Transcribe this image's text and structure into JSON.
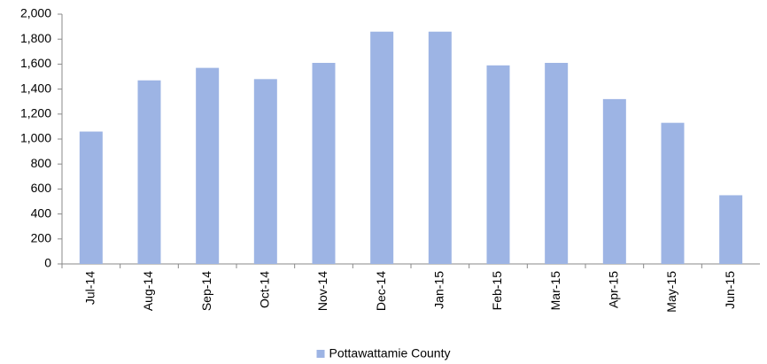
{
  "chart_data": {
    "type": "bar",
    "categories": [
      "Jul-14",
      "Aug-14",
      "Sep-14",
      "Oct-14",
      "Nov-14",
      "Dec-14",
      "Jan-15",
      "Feb-15",
      "Mar-15",
      "Apr-15",
      "May-15",
      "Jun-15"
    ],
    "series": [
      {
        "name": "Pottawattamie County",
        "color": "#9db4e4",
        "values": [
          1060,
          1470,
          1570,
          1480,
          1610,
          1860,
          1860,
          1590,
          1610,
          1320,
          1130,
          550
        ]
      }
    ],
    "ylim": [
      0,
      2000
    ],
    "yticks": [
      0,
      200,
      400,
      600,
      800,
      {
        "value": 1000,
        "label": "1,000"
      },
      {
        "value": 1200,
        "label": "1,200"
      },
      {
        "value": 1400,
        "label": "1,400"
      },
      {
        "value": 1600,
        "label": "1,600"
      },
      {
        "value": 1800,
        "label": "1,800"
      },
      {
        "value": 2000,
        "label": "2,000"
      }
    ],
    "grid": false,
    "legend": "bottom"
  }
}
